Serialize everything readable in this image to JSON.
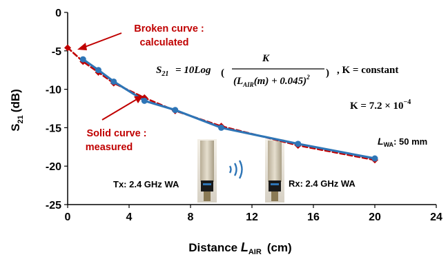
{
  "chart_data": {
    "type": "line",
    "xlabel_main": "Distance ",
    "xlabel_var": "L",
    "xlabel_sub": "AIR",
    "xlabel_unit": "(cm)",
    "ylabel_main": "S",
    "ylabel_sub": "21",
    "ylabel_unit": "(dB)",
    "xlim": [
      0,
      24
    ],
    "ylim": [
      -25,
      0
    ],
    "x_ticks": [
      "0",
      "4",
      "8",
      "12",
      "16",
      "20",
      "24"
    ],
    "y_ticks": [
      "0",
      "-5",
      "-10",
      "-15",
      "-20",
      "-25"
    ],
    "grid": false,
    "series": [
      {
        "style": "solid",
        "color": "#2e75b6",
        "marker": "circle",
        "x": [
          1,
          2,
          3,
          5,
          7,
          10,
          15,
          20
        ],
        "y": [
          -6.1,
          -7.5,
          -9.0,
          -11.5,
          -12.7,
          -15.0,
          -17.1,
          -19.0
        ]
      },
      {
        "style": "dashed",
        "color": "#c00000",
        "marker": "diamond",
        "x": [
          0,
          1,
          2,
          3,
          5,
          7,
          10,
          15,
          20
        ],
        "y": [
          -4.6,
          -6.4,
          -7.8,
          -9.2,
          -11.1,
          -12.8,
          -14.8,
          -17.3,
          -19.2
        ]
      }
    ],
    "annotations": {
      "broken_line1": "Broken curve :",
      "broken_line2": "calculated",
      "solid_line1": "Solid curve :",
      "solid_line2": "measured",
      "formula_s21": "S",
      "formula_s21_sub": "21",
      "formula_eq": "= 10Log",
      "formula_num": "K",
      "formula_den_open": "(L",
      "formula_den_sub": "AIR",
      "formula_den_rest": "(m) + 0.045)",
      "formula_den_sup": "2",
      "formula_tail": ", K = constant",
      "k_value": "K = 7.2 × 10",
      "k_exp": "−4",
      "lwa_var": "L",
      "lwa_sub": "WA",
      "lwa_value": ": 50 mm",
      "tx_label": "Tx: 2.4 GHz WA",
      "rx_label": "Rx: 2.4 GHz WA"
    }
  }
}
